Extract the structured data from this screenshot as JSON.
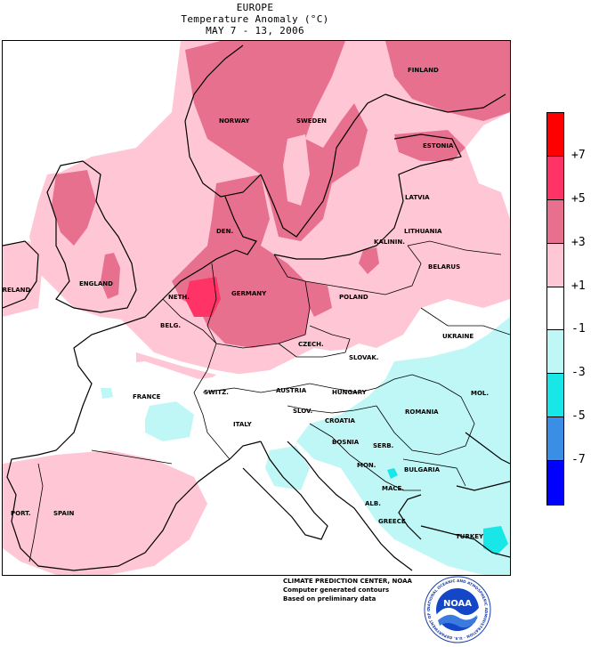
{
  "header": {
    "region": "EUROPE",
    "title": "Temperature Anomaly (°C)",
    "period": "MAY 7 - 13, 2006"
  },
  "legend": {
    "unit": "°C",
    "swatches": [
      {
        "range": "above +7",
        "color": "#ff0000"
      },
      {
        "range": "+5 to +7",
        "color": "#ff3366"
      },
      {
        "range": "+3 to +5",
        "color": "#e8708f"
      },
      {
        "range": "+1 to +3",
        "color": "#ffc6d6"
      },
      {
        "range": "-1 to +1",
        "color": "#ffffff"
      },
      {
        "range": "-3 to -1",
        "color": "#bff7f7"
      },
      {
        "range": "-5 to -3",
        "color": "#19e6e6"
      },
      {
        "range": "-7 to -5",
        "color": "#3b8ee6"
      },
      {
        "range": "below -7",
        "color": "#0000ff"
      }
    ],
    "ticks": [
      "+7",
      "+5",
      "+3",
      "+1",
      "-1",
      "-3",
      "-5",
      "-7"
    ]
  },
  "map": {
    "countries": [
      "FINLAND",
      "NORWAY",
      "SWEDEN",
      "ESTONIA",
      "LATVIA",
      "LITHUANIA",
      "KALININ.",
      "BELARUS",
      "DEN.",
      "ENGLAND",
      "IRELAND",
      "NETH.",
      "BELG.",
      "GERMANY",
      "POLAND",
      "UKRAINE",
      "CZECH.",
      "SLOVAK.",
      "FRANCE",
      "SWITZ.",
      "AUSTRIA",
      "HUNGARY",
      "MOL.",
      "ROMANIA",
      "SLOV.",
      "CROATIA",
      "ITALY",
      "BOSNIA",
      "SERB.",
      "MON.",
      "BULGARIA",
      "MACE.",
      "ALB.",
      "GREECE",
      "PORT.",
      "SPAIN",
      "TURKEY"
    ]
  },
  "credits": {
    "line1": "CLIMATE PREDICTION CENTER, NOAA",
    "line2": "Computer generated contours",
    "line3": "Based on preliminary data"
  },
  "logo": {
    "text": "NOAA",
    "ring_text": "NATIONAL OCEANIC AND ATMOSPHERIC ADMINISTRATION · U.S. DEPARTMENT OF COMMERCE"
  }
}
